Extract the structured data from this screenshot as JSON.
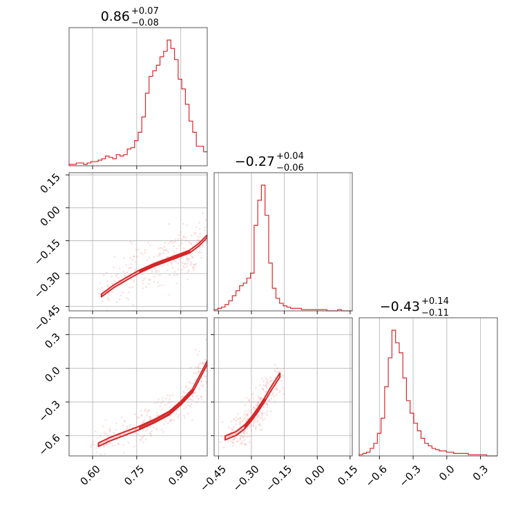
{
  "colors": {
    "accent": "#d62728",
    "grid": "#b0b0b0",
    "frame": "#444444"
  },
  "chart_data": {
    "type": "corner",
    "params": [
      {
        "title_main": "0.86",
        "title_plus": "+0.07",
        "title_minus": "−0.08",
        "range": [
          0.52,
          0.99
        ]
      },
      {
        "title_main": "−0.27",
        "title_plus": "+0.04",
        "title_minus": "−0.06",
        "range": [
          -0.47,
          0.16
        ]
      },
      {
        "title_main": "−0.43",
        "title_plus": "+0.14",
        "title_minus": "−0.11",
        "range": [
          -0.78,
          0.45
        ]
      }
    ],
    "histograms": [
      {
        "param": 0,
        "values": [
          1,
          1,
          2,
          2,
          1,
          2,
          3,
          3,
          4,
          5,
          7,
          6,
          5,
          8,
          7,
          8,
          12,
          13,
          18,
          24,
          35,
          52,
          64,
          68,
          72,
          78,
          82,
          90,
          84,
          76,
          62,
          55,
          44,
          32,
          24,
          14,
          14,
          10
        ]
      },
      {
        "param": 1,
        "values": [
          1,
          2,
          3,
          5,
          8,
          12,
          16,
          20,
          22,
          26,
          30,
          68,
          88,
          100,
          76,
          38,
          18,
          10,
          6,
          4,
          3,
          2,
          2,
          2,
          1,
          1,
          1,
          1,
          1,
          1,
          1,
          0,
          0,
          0,
          1,
          0,
          0,
          0
        ]
      },
      {
        "param": 2,
        "values": [
          1,
          2,
          3,
          6,
          10,
          18,
          30,
          55,
          78,
          100,
          90,
          82,
          62,
          44,
          34,
          26,
          20,
          14,
          10,
          8,
          6,
          5,
          4,
          4,
          3,
          3,
          2,
          2,
          2,
          2,
          1,
          1,
          1,
          1,
          1,
          0,
          0,
          0
        ]
      }
    ],
    "pairs": [
      {
        "x_param": 0,
        "y_param": 1,
        "band": [
          [
            0.63,
            -0.4
          ],
          [
            0.67,
            -0.36
          ],
          [
            0.72,
            -0.32
          ],
          [
            0.76,
            -0.29
          ],
          [
            0.81,
            -0.26
          ],
          [
            0.85,
            -0.24
          ],
          [
            0.89,
            -0.22
          ],
          [
            0.93,
            -0.2
          ],
          [
            0.96,
            -0.17
          ],
          [
            0.99,
            -0.13
          ]
        ],
        "width": 0.035
      },
      {
        "x_param": 0,
        "y_param": 2,
        "band": [
          [
            0.62,
            -0.68
          ],
          [
            0.66,
            -0.63
          ],
          [
            0.71,
            -0.58
          ],
          [
            0.76,
            -0.53
          ],
          [
            0.81,
            -0.47
          ],
          [
            0.86,
            -0.4
          ],
          [
            0.9,
            -0.31
          ],
          [
            0.94,
            -0.2
          ],
          [
            0.97,
            -0.05
          ],
          [
            0.99,
            0.05
          ]
        ],
        "width": 0.045
      },
      {
        "x_param": 1,
        "y_param": 2,
        "band": [
          [
            -0.42,
            -0.62
          ],
          [
            -0.37,
            -0.58
          ],
          [
            -0.33,
            -0.52
          ],
          [
            -0.3,
            -0.45
          ],
          [
            -0.27,
            -0.37
          ],
          [
            -0.24,
            -0.28
          ],
          [
            -0.21,
            -0.18
          ],
          [
            -0.17,
            -0.06
          ]
        ],
        "width": 0.05
      }
    ],
    "ticks": {
      "p0": [
        0.6,
        0.75,
        0.9
      ],
      "p1": [
        -0.45,
        -0.3,
        -0.15,
        0.0,
        0.15
      ],
      "p2": [
        -0.6,
        -0.3,
        0.0,
        0.3
      ]
    },
    "tick_labels": {
      "p0": [
        "0.60",
        "0.75",
        "0.90"
      ],
      "p1": [
        "−0.45",
        "−0.30",
        "−0.15",
        "0.00",
        "0.15"
      ],
      "p2": [
        "−0.6",
        "−0.3",
        "0.0",
        "0.3"
      ]
    },
    "grid": true
  }
}
